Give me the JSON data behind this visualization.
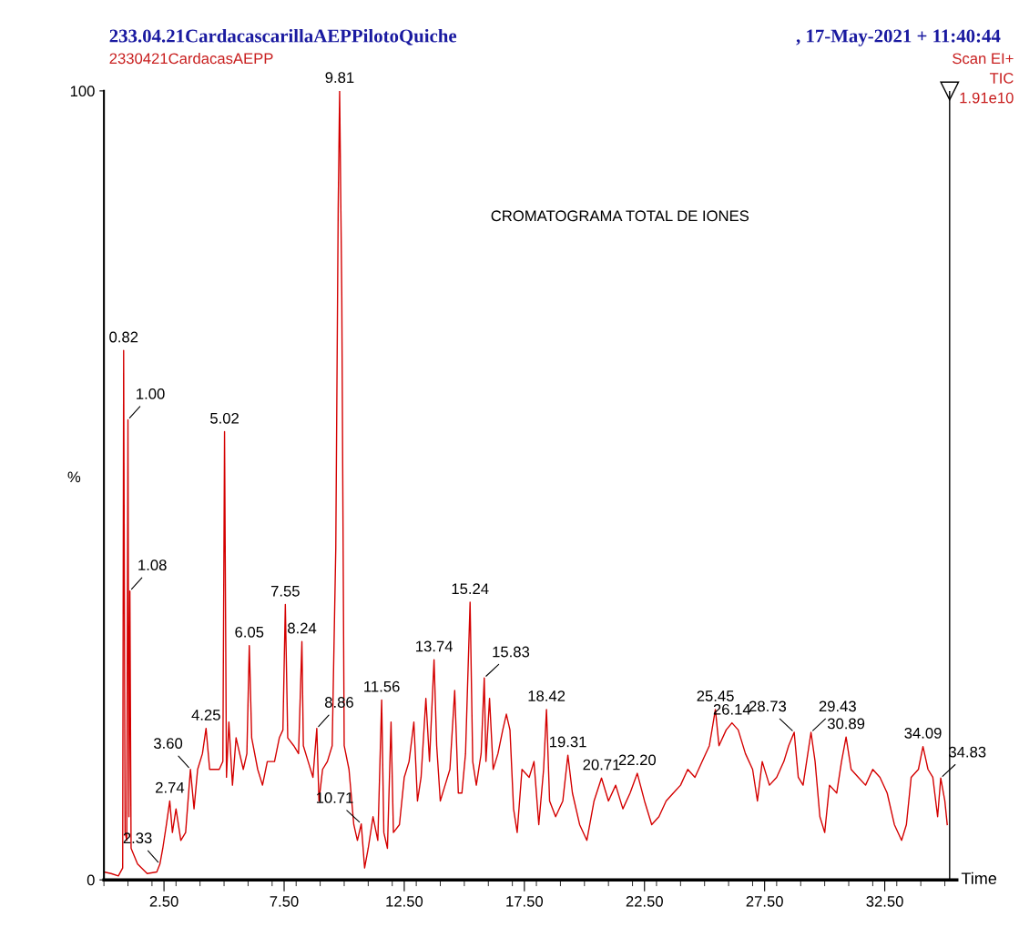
{
  "chart_data": {
    "type": "line",
    "title": "233.04.21CardacascarillaAEPPilotoQuiche",
    "subtitle": "2330421CardacasAEPP",
    "xlabel": "Time",
    "ylabel": "%",
    "xlim": [
      0,
      35.5
    ],
    "ylim": [
      0,
      100
    ],
    "xticks": [
      {
        "value": 2.5,
        "label": "2.50"
      },
      {
        "value": 7.5,
        "label": "7.50"
      },
      {
        "value": 12.5,
        "label": "12.50"
      },
      {
        "value": 17.5,
        "label": "17.50"
      },
      {
        "value": 22.5,
        "label": "22.50"
      },
      {
        "value": 27.5,
        "label": "27.50"
      },
      {
        "value": 32.5,
        "label": "32.50"
      }
    ],
    "yticks": [
      0,
      100
    ],
    "grid": false,
    "marker": "none",
    "line_style": "solid",
    "ref_lines": [
      {
        "axis": "x",
        "value": 35.2,
        "label": null,
        "color": "#000000"
      }
    ],
    "series": [
      {
        "color": "#d40000",
        "x": [
          0.0,
          0.3,
          0.6,
          0.78,
          0.82,
          0.88,
          0.95,
          1.0,
          1.04,
          1.08,
          1.13,
          1.4,
          1.8,
          2.2,
          2.33,
          2.45,
          2.6,
          2.74,
          2.85,
          3.0,
          3.2,
          3.4,
          3.6,
          3.75,
          3.9,
          4.1,
          4.25,
          4.4,
          4.6,
          4.8,
          4.95,
          5.02,
          5.1,
          5.2,
          5.35,
          5.5,
          5.8,
          5.95,
          6.05,
          6.15,
          6.4,
          6.6,
          6.8,
          7.1,
          7.3,
          7.45,
          7.55,
          7.65,
          7.9,
          8.1,
          8.24,
          8.3,
          8.5,
          8.7,
          8.86,
          8.95,
          9.1,
          9.3,
          9.5,
          9.65,
          9.75,
          9.81,
          9.9,
          10.0,
          10.2,
          10.4,
          10.55,
          10.71,
          10.85,
          11.0,
          11.2,
          11.4,
          11.56,
          11.65,
          11.8,
          11.95,
          12.05,
          12.3,
          12.5,
          12.7,
          12.9,
          13.05,
          13.2,
          13.4,
          13.55,
          13.74,
          13.85,
          14.0,
          14.2,
          14.4,
          14.6,
          14.75,
          14.9,
          15.05,
          15.24,
          15.35,
          15.5,
          15.7,
          15.83,
          15.9,
          16.05,
          16.2,
          16.4,
          16.6,
          16.75,
          16.9,
          17.05,
          17.2,
          17.4,
          17.7,
          17.9,
          18.1,
          18.3,
          18.42,
          18.55,
          18.8,
          19.1,
          19.31,
          19.5,
          19.8,
          20.1,
          20.4,
          20.71,
          21.0,
          21.3,
          21.6,
          21.9,
          22.2,
          22.5,
          22.8,
          23.1,
          23.4,
          23.7,
          24.0,
          24.3,
          24.6,
          24.9,
          25.2,
          25.45,
          25.6,
          25.9,
          26.14,
          26.4,
          26.7,
          27.0,
          27.2,
          27.4,
          27.7,
          28.0,
          28.3,
          28.5,
          28.73,
          28.9,
          29.1,
          29.43,
          29.6,
          29.8,
          30.0,
          30.2,
          30.5,
          30.7,
          30.89,
          31.1,
          31.4,
          31.7,
          32.0,
          32.3,
          32.6,
          32.9,
          33.2,
          33.4,
          33.6,
          33.9,
          34.09,
          34.3,
          34.5,
          34.7,
          34.83,
          35.0,
          35.1
        ],
        "values": [
          1.0,
          0.8,
          0.5,
          1.5,
          67.1,
          6,
          5,
          58.3,
          8,
          36.6,
          4,
          2,
          0.8,
          1.0,
          2.0,
          4,
          7,
          10.0,
          6,
          9,
          5,
          6,
          14.0,
          9,
          14,
          16,
          19.2,
          14,
          14,
          14,
          15,
          56.8,
          13,
          20,
          12,
          18,
          14,
          16,
          29.7,
          18,
          14,
          12,
          15,
          15,
          18,
          19,
          34.9,
          18,
          17,
          16,
          30.2,
          17,
          15,
          13,
          19.2,
          10,
          14,
          15,
          17,
          42,
          85,
          100,
          74,
          17,
          14,
          7,
          5,
          7.1,
          1.5,
          4,
          8,
          5,
          22.8,
          6,
          4,
          20,
          6,
          7,
          13,
          15,
          20,
          10,
          13,
          23,
          15,
          27.9,
          17,
          10,
          12,
          14,
          24,
          11,
          11,
          16,
          35.2,
          15,
          12,
          16,
          25.6,
          15,
          23,
          14,
          16,
          19,
          21,
          19,
          9,
          6,
          14,
          13,
          15,
          7,
          14,
          21.6,
          10,
          8,
          10,
          15.8,
          11,
          7,
          5,
          10,
          12.9,
          10,
          12,
          9,
          11,
          13.5,
          10,
          7,
          8,
          10,
          11,
          12,
          14,
          13,
          15,
          17,
          21.6,
          17,
          19,
          19.9,
          19,
          16,
          14,
          10,
          15,
          12,
          13,
          15,
          17,
          18.7,
          13,
          12,
          18.7,
          15,
          8,
          6,
          12,
          11,
          15,
          18.1,
          14,
          13,
          12,
          14,
          13,
          11,
          7,
          5,
          7,
          13,
          14,
          16.9,
          14,
          13,
          8,
          12.9,
          10,
          7
        ]
      }
    ],
    "annotations": [
      ", 17-May-2021 + 11:40:44",
      "Scan EI+",
      "TIC",
      "1.91e10",
      "CROMATOGRAMA TOTAL DE IONES",
      {
        "text": "0.82",
        "x": 0.82,
        "y": 67.1
      },
      {
        "text": "1.00",
        "x": 1.0,
        "y": 58.3
      },
      {
        "text": "1.08",
        "x": 1.08,
        "y": 36.6
      },
      {
        "text": "2.33",
        "x": 2.33,
        "y": 2.0
      },
      {
        "text": "2.74",
        "x": 2.74,
        "y": 10.0
      },
      {
        "text": "3.60",
        "x": 3.6,
        "y": 14.0
      },
      {
        "text": "4.25",
        "x": 4.25,
        "y": 19.2
      },
      {
        "text": "5.02",
        "x": 5.02,
        "y": 56.8
      },
      {
        "text": "6.05",
        "x": 6.05,
        "y": 29.7
      },
      {
        "text": "7.55",
        "x": 7.55,
        "y": 34.9
      },
      {
        "text": "8.24",
        "x": 8.24,
        "y": 30.2
      },
      {
        "text": "8.86",
        "x": 8.86,
        "y": 19.2
      },
      {
        "text": "9.81",
        "x": 9.81,
        "y": 100
      },
      {
        "text": "10.71",
        "x": 10.71,
        "y": 7.1
      },
      {
        "text": "11.56",
        "x": 11.56,
        "y": 22.8
      },
      {
        "text": "13.74",
        "x": 13.74,
        "y": 27.9
      },
      {
        "text": "15.24",
        "x": 15.24,
        "y": 35.2
      },
      {
        "text": "15.83",
        "x": 15.83,
        "y": 25.6
      },
      {
        "text": "18.42",
        "x": 18.42,
        "y": 21.6
      },
      {
        "text": "19.31",
        "x": 19.31,
        "y": 15.8
      },
      {
        "text": "20.71",
        "x": 20.71,
        "y": 12.9
      },
      {
        "text": "22.20",
        "x": 22.2,
        "y": 13.5
      },
      {
        "text": "25.45",
        "x": 25.45,
        "y": 21.6
      },
      {
        "text": "26.14",
        "x": 26.14,
        "y": 19.9
      },
      {
        "text": "28.73",
        "x": 28.73,
        "y": 18.7
      },
      {
        "text": "29.43",
        "x": 29.43,
        "y": 18.7
      },
      {
        "text": "30.89",
        "x": 30.89,
        "y": 18.1
      },
      {
        "text": "34.09",
        "x": 34.09,
        "y": 16.9
      },
      {
        "text": "34.83",
        "x": 34.83,
        "y": 12.9
      }
    ]
  }
}
